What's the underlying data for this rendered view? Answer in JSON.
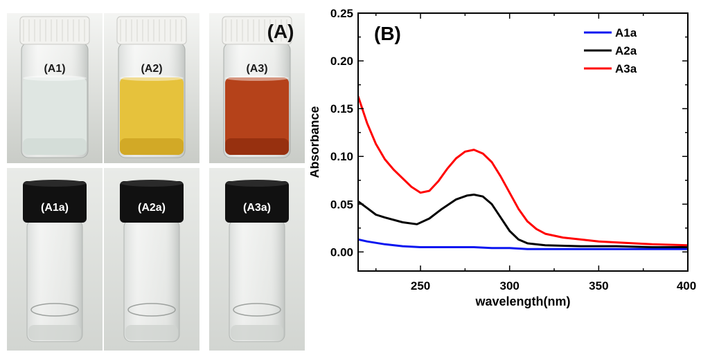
{
  "panel_a": {
    "label": "(A)",
    "top_row": [
      {
        "label": "(A1)",
        "liquid": "#dfe6e2",
        "tint": "#cfd8d4"
      },
      {
        "label": "(A2)",
        "liquid": "#e6c23c",
        "tint": "#c99e1c"
      },
      {
        "label": "(A3)",
        "liquid": "#b5421a",
        "tint": "#8a2a0c"
      }
    ],
    "bottom_row": [
      {
        "label": "(A1a)"
      },
      {
        "label": "(A2a)"
      },
      {
        "label": "(A3a)"
      }
    ]
  },
  "chart_data": {
    "type": "line",
    "panel_label": "(B)",
    "xlabel": "wavelength(nm)",
    "ylabel": "Absorbance",
    "xlim": [
      215,
      400
    ],
    "ylim": [
      -0.02,
      0.25
    ],
    "xticks": [
      250,
      300,
      350,
      400
    ],
    "yticks": [
      0.0,
      0.05,
      0.1,
      0.15,
      0.2,
      0.25
    ],
    "ytick_labels": [
      "0.00",
      "0.05",
      "0.10",
      "0.15",
      "0.20",
      "0.25"
    ],
    "legend_position": "top-right",
    "series": [
      {
        "name": "A1a",
        "color": "#0a16f0",
        "x": [
          215,
          220,
          230,
          240,
          250,
          260,
          270,
          280,
          290,
          300,
          310,
          320,
          340,
          360,
          380,
          400
        ],
        "y": [
          0.013,
          0.011,
          0.008,
          0.006,
          0.005,
          0.005,
          0.005,
          0.005,
          0.004,
          0.004,
          0.003,
          0.003,
          0.003,
          0.003,
          0.003,
          0.003
        ]
      },
      {
        "name": "A2a",
        "color": "#000000",
        "x": [
          215,
          220,
          225,
          230,
          240,
          248,
          255,
          262,
          270,
          276,
          280,
          285,
          290,
          295,
          300,
          305,
          310,
          320,
          340,
          360,
          380,
          400
        ],
        "y": [
          0.053,
          0.046,
          0.039,
          0.036,
          0.031,
          0.029,
          0.035,
          0.045,
          0.055,
          0.059,
          0.06,
          0.058,
          0.05,
          0.036,
          0.022,
          0.013,
          0.009,
          0.007,
          0.006,
          0.006,
          0.005,
          0.005
        ]
      },
      {
        "name": "A3a",
        "color": "#ff0000",
        "x": [
          215,
          220,
          225,
          230,
          235,
          240,
          245,
          250,
          255,
          260,
          265,
          270,
          275,
          280,
          285,
          290,
          295,
          300,
          305,
          310,
          315,
          320,
          330,
          340,
          350,
          360,
          380,
          400
        ],
        "y": [
          0.163,
          0.135,
          0.113,
          0.097,
          0.086,
          0.077,
          0.068,
          0.062,
          0.064,
          0.074,
          0.087,
          0.098,
          0.105,
          0.107,
          0.103,
          0.094,
          0.079,
          0.062,
          0.045,
          0.032,
          0.024,
          0.019,
          0.015,
          0.013,
          0.011,
          0.01,
          0.008,
          0.007
        ]
      }
    ]
  }
}
